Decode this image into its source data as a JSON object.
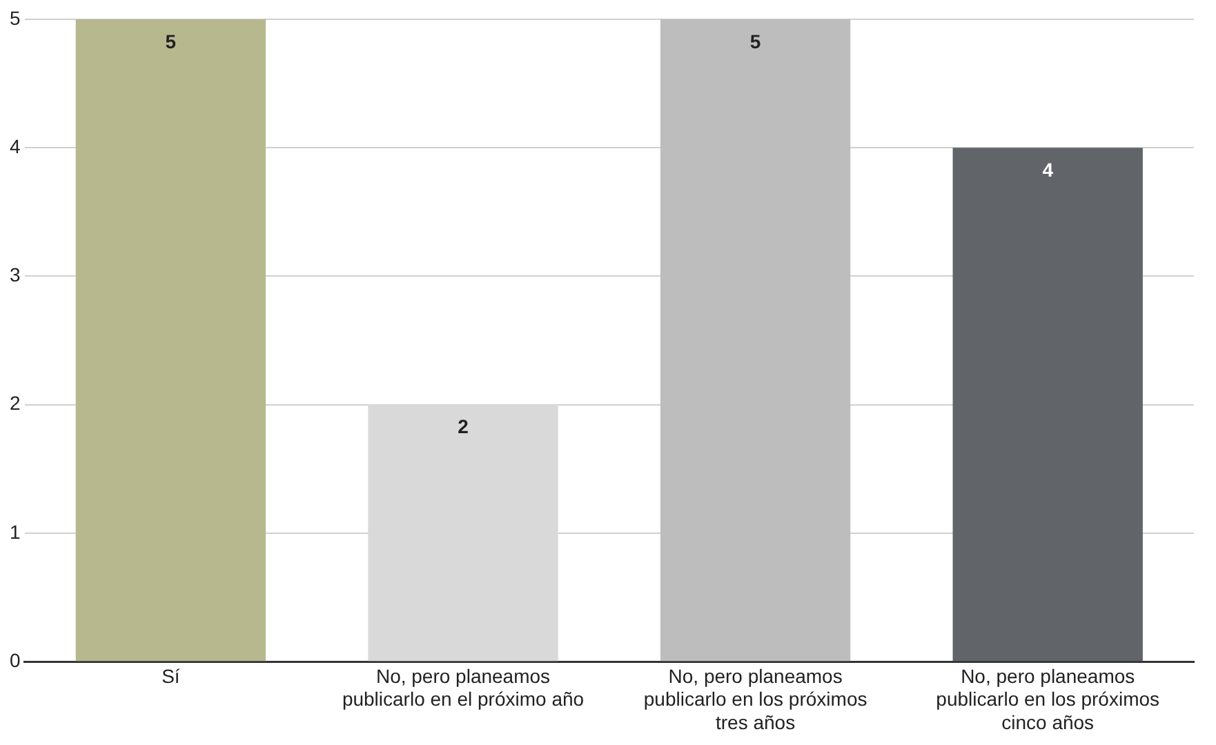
{
  "chart_data": {
    "type": "bar",
    "categories": [
      "Sí",
      "No, pero planeamos publicarlo en el próximo año",
      "No, pero planeamos publicarlo en los próximos tres años",
      "No, pero planeamos publicarlo en los próximos cinco años"
    ],
    "values": [
      5,
      2,
      5,
      4
    ],
    "colors": [
      "#b8b88f",
      "#d9d9d9",
      "#bdbdbd",
      "#616469"
    ],
    "ylim": [
      0,
      5
    ],
    "yticks": [
      0,
      1,
      2,
      3,
      4,
      5
    ],
    "grid": "y",
    "data_labels": true,
    "legend": false
  }
}
